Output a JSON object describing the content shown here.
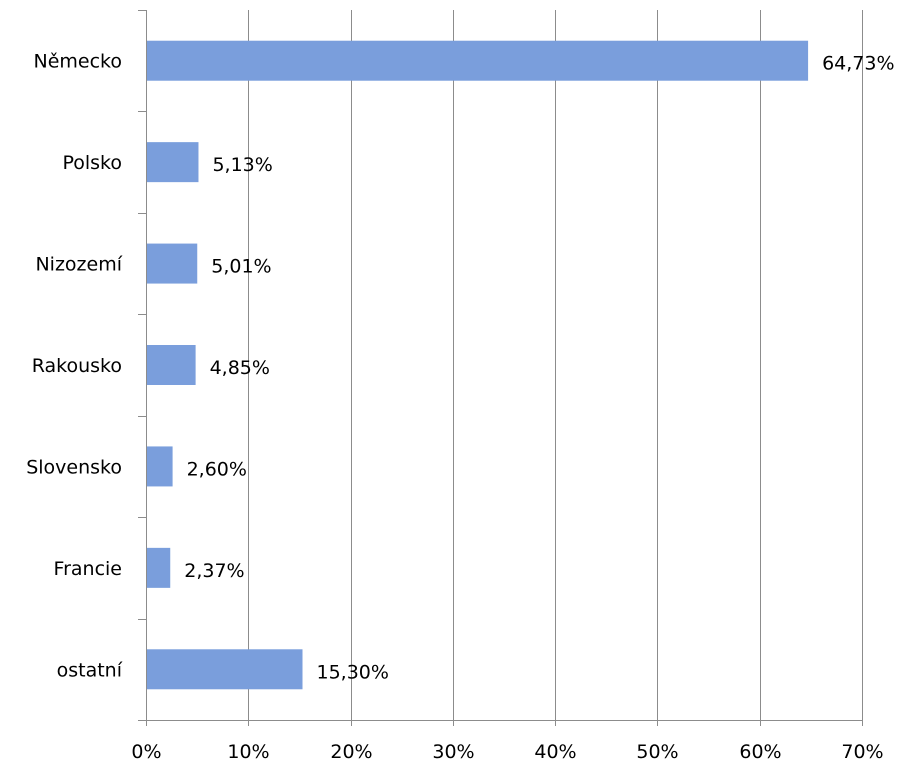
{
  "chart_data": {
    "type": "bar",
    "orientation": "horizontal",
    "categories": [
      "Německo",
      "Polsko",
      "Nizozemí",
      "Rakousko",
      "Slovensko",
      "Francie",
      "ostatní"
    ],
    "values": [
      64.73,
      5.13,
      5.01,
      4.85,
      2.6,
      2.37,
      15.3
    ],
    "value_labels": [
      "64,73%",
      "5,13%",
      "5,01%",
      "4,85%",
      "2,60%",
      "2,37%",
      "15,30%"
    ],
    "xlim": [
      0,
      70
    ],
    "x_ticks": [
      0,
      10,
      20,
      30,
      40,
      50,
      60,
      70
    ],
    "x_tick_labels": [
      "0%",
      "10%",
      "20%",
      "30%",
      "40%",
      "50%",
      "60%",
      "70%"
    ],
    "grid": "vertical",
    "legend": "none",
    "colors": {
      "bar": "#7a9edc",
      "grid": "#8c8c8c",
      "text": "#000000"
    }
  }
}
